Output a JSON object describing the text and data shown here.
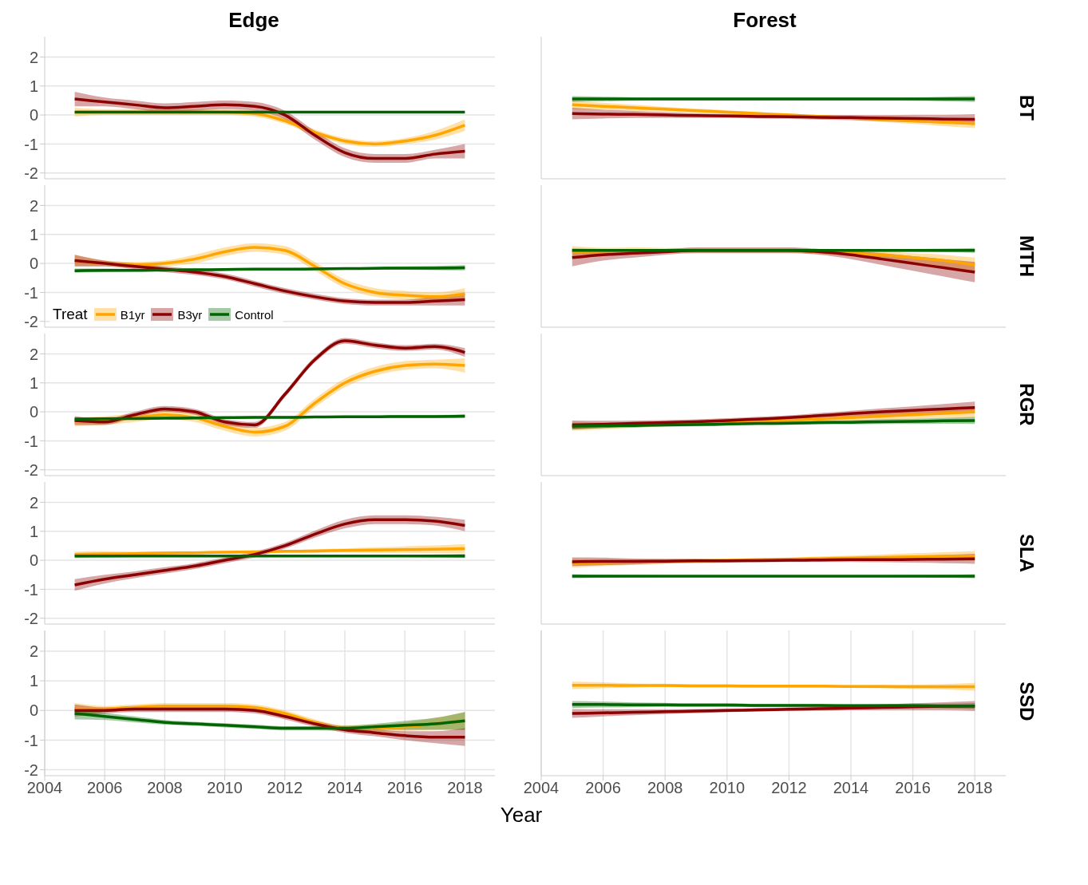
{
  "chart_data": [
    {
      "type": "line",
      "title": "Edge",
      "x": [
        2005,
        2006,
        2007,
        2008,
        2009,
        2010,
        2011,
        2012,
        2013,
        2014,
        2015,
        2016,
        2017,
        2018
      ],
      "xlim": [
        2004,
        2019
      ],
      "xticks": [
        2004,
        2006,
        2008,
        2010,
        2012,
        2014,
        2016,
        2018
      ],
      "ylim": [
        -2.2,
        2.7
      ],
      "yticks": [
        -2,
        -1,
        0,
        1,
        2
      ],
      "grid": true,
      "tick_labels": "y",
      "marker": "none",
      "series": [
        {
          "color": "#ffa500",
          "values": [
            0.1,
            0.1,
            0.1,
            0.1,
            0.1,
            0.1,
            0.05,
            -0.2,
            -0.6,
            -0.9,
            -1.0,
            -0.9,
            -0.7,
            -0.35
          ],
          "lower": [
            -0.05,
            0.0,
            0.0,
            0.0,
            0.0,
            0.0,
            -0.05,
            -0.3,
            -0.7,
            -1.0,
            -1.1,
            -1.0,
            -0.85,
            -0.55
          ],
          "upper": [
            0.25,
            0.2,
            0.2,
            0.2,
            0.2,
            0.2,
            0.15,
            -0.1,
            -0.5,
            -0.8,
            -0.9,
            -0.8,
            -0.55,
            -0.15
          ]
        },
        {
          "color": "#8b0000",
          "values": [
            0.55,
            0.45,
            0.35,
            0.25,
            0.3,
            0.35,
            0.3,
            0.0,
            -0.7,
            -1.3,
            -1.5,
            -1.5,
            -1.35,
            -1.25
          ],
          "lower": [
            0.3,
            0.3,
            0.2,
            0.1,
            0.15,
            0.2,
            0.15,
            -0.15,
            -0.85,
            -1.45,
            -1.65,
            -1.65,
            -1.5,
            -1.5
          ],
          "upper": [
            0.8,
            0.6,
            0.5,
            0.4,
            0.45,
            0.5,
            0.45,
            0.15,
            -0.55,
            -1.15,
            -1.35,
            -1.35,
            -1.2,
            -1.0
          ]
        },
        {
          "color": "#006400",
          "values": [
            0.1,
            0.1,
            0.1,
            0.1,
            0.1,
            0.1,
            0.1,
            0.1,
            0.1,
            0.1,
            0.1,
            0.1,
            0.1,
            0.1
          ]
        }
      ]
    },
    {
      "type": "line",
      "title": "Forest",
      "y2label": "BT",
      "x": [
        2005,
        2006,
        2007,
        2008,
        2009,
        2010,
        2011,
        2012,
        2013,
        2014,
        2015,
        2016,
        2017,
        2018
      ],
      "xlim": [
        2004,
        2019
      ],
      "xticks": [
        2004,
        2006,
        2008,
        2010,
        2012,
        2014,
        2016,
        2018
      ],
      "ylim": [
        -2.2,
        2.7
      ],
      "yticks": [
        -2,
        -1,
        0,
        1,
        2
      ],
      "grid": true,
      "tick_labels": false,
      "marker": "none",
      "series": [
        {
          "color": "#ffa500",
          "values": [
            0.35,
            0.3,
            0.25,
            0.2,
            0.15,
            0.1,
            0.05,
            0.0,
            -0.05,
            -0.1,
            -0.15,
            -0.2,
            -0.25,
            -0.3
          ],
          "lower": [
            0.2,
            0.18,
            0.15,
            0.12,
            0.08,
            0.04,
            0.0,
            -0.05,
            -0.1,
            -0.17,
            -0.24,
            -0.31,
            -0.38,
            -0.45
          ],
          "upper": [
            0.5,
            0.42,
            0.35,
            0.28,
            0.22,
            0.16,
            0.1,
            0.05,
            0.0,
            -0.03,
            -0.06,
            -0.09,
            -0.12,
            -0.15
          ]
        },
        {
          "color": "#8b0000",
          "values": [
            0.05,
            0.03,
            0.02,
            0.0,
            -0.02,
            -0.03,
            -0.05,
            -0.06,
            -0.08,
            -0.09,
            -0.11,
            -0.12,
            -0.14,
            -0.15
          ],
          "lower": [
            -0.15,
            -0.12,
            -0.1,
            -0.1,
            -0.1,
            -0.1,
            -0.12,
            -0.13,
            -0.16,
            -0.18,
            -0.22,
            -0.25,
            -0.29,
            -0.33
          ],
          "upper": [
            0.25,
            0.18,
            0.14,
            0.1,
            0.06,
            0.04,
            0.02,
            0.01,
            0.0,
            0.0,
            0.0,
            0.01,
            0.01,
            0.03
          ]
        },
        {
          "color": "#006400",
          "values": [
            0.55,
            0.55,
            0.55,
            0.55,
            0.55,
            0.55,
            0.55,
            0.55,
            0.55,
            0.55,
            0.55,
            0.55,
            0.55,
            0.55
          ],
          "lower": [
            0.45,
            0.47,
            0.49,
            0.5,
            0.5,
            0.5,
            0.5,
            0.5,
            0.5,
            0.5,
            0.5,
            0.49,
            0.47,
            0.45
          ],
          "upper": [
            0.65,
            0.63,
            0.61,
            0.6,
            0.6,
            0.6,
            0.6,
            0.6,
            0.6,
            0.6,
            0.6,
            0.61,
            0.63,
            0.65
          ]
        }
      ]
    },
    {
      "type": "line",
      "x": [
        2005,
        2006,
        2007,
        2008,
        2009,
        2010,
        2011,
        2012,
        2013,
        2014,
        2015,
        2016,
        2017,
        2018
      ],
      "xlim": [
        2004,
        2019
      ],
      "xticks": [
        2004,
        2006,
        2008,
        2010,
        2012,
        2014,
        2016,
        2018
      ],
      "ylim": [
        -2.2,
        2.7
      ],
      "yticks": [
        -2,
        -1,
        0,
        1,
        2
      ],
      "grid": true,
      "tick_labels": "y",
      "marker": "none",
      "legend": "bottom left",
      "legend_title": "Treat",
      "series": [
        {
          "name": "B1yr",
          "color": "#ffa500",
          "values": [
            0.1,
            0.0,
            -0.05,
            0.0,
            0.15,
            0.4,
            0.55,
            0.45,
            -0.1,
            -0.7,
            -1.0,
            -1.1,
            -1.15,
            -1.05
          ],
          "lower": [
            -0.1,
            -0.1,
            -0.15,
            -0.1,
            0.0,
            0.25,
            0.4,
            0.3,
            -0.25,
            -0.85,
            -1.15,
            -1.25,
            -1.3,
            -1.25
          ],
          "upper": [
            0.3,
            0.1,
            0.05,
            0.1,
            0.3,
            0.55,
            0.7,
            0.6,
            0.05,
            -0.55,
            -0.85,
            -0.95,
            -1.0,
            -0.85
          ]
        },
        {
          "name": "B3yr",
          "color": "#8b0000",
          "values": [
            0.1,
            0.0,
            -0.1,
            -0.2,
            -0.3,
            -0.45,
            -0.7,
            -0.95,
            -1.15,
            -1.3,
            -1.35,
            -1.35,
            -1.3,
            -1.25
          ],
          "lower": [
            -0.1,
            -0.1,
            -0.2,
            -0.3,
            -0.4,
            -0.55,
            -0.8,
            -1.05,
            -1.25,
            -1.4,
            -1.45,
            -1.45,
            -1.45,
            -1.45
          ],
          "upper": [
            0.3,
            0.1,
            0.0,
            -0.1,
            -0.2,
            -0.35,
            -0.6,
            -0.85,
            -1.05,
            -1.2,
            -1.25,
            -1.25,
            -1.15,
            -1.05
          ]
        },
        {
          "name": "Control",
          "color": "#006400",
          "values": [
            -0.25,
            -0.24,
            -0.24,
            -0.23,
            -0.22,
            -0.21,
            -0.2,
            -0.2,
            -0.19,
            -0.18,
            -0.17,
            -0.16,
            -0.16,
            -0.15
          ],
          "lower": [
            -0.32,
            -0.3,
            -0.29,
            -0.27,
            -0.26,
            -0.25,
            -0.24,
            -0.24,
            -0.23,
            -0.22,
            -0.22,
            -0.22,
            -0.23,
            -0.24
          ],
          "upper": [
            -0.18,
            -0.18,
            -0.19,
            -0.19,
            -0.18,
            -0.17,
            -0.16,
            -0.16,
            -0.15,
            -0.14,
            -0.12,
            -0.1,
            -0.09,
            -0.06
          ]
        }
      ]
    },
    {
      "type": "line",
      "y2label": "MTH",
      "x": [
        2005,
        2006,
        2007,
        2008,
        2009,
        2010,
        2011,
        2012,
        2013,
        2014,
        2015,
        2016,
        2017,
        2018
      ],
      "xlim": [
        2004,
        2019
      ],
      "xticks": [
        2004,
        2006,
        2008,
        2010,
        2012,
        2014,
        2016,
        2018
      ],
      "ylim": [
        -2.2,
        2.7
      ],
      "yticks": [
        -2,
        -1,
        0,
        1,
        2
      ],
      "grid": true,
      "tick_labels": false,
      "marker": "none",
      "series": [
        {
          "color": "#ffa500",
          "values": [
            0.4,
            0.42,
            0.45,
            0.45,
            0.45,
            0.45,
            0.45,
            0.45,
            0.4,
            0.35,
            0.3,
            0.2,
            0.1,
            -0.05
          ],
          "lower": [
            0.2,
            0.3,
            0.35,
            0.37,
            0.37,
            0.37,
            0.37,
            0.37,
            0.32,
            0.25,
            0.18,
            0.05,
            -0.1,
            -0.3
          ],
          "upper": [
            0.6,
            0.54,
            0.55,
            0.53,
            0.53,
            0.53,
            0.53,
            0.53,
            0.48,
            0.45,
            0.42,
            0.35,
            0.3,
            0.2
          ]
        },
        {
          "color": "#8b0000",
          "values": [
            0.2,
            0.3,
            0.35,
            0.4,
            0.45,
            0.45,
            0.45,
            0.45,
            0.4,
            0.3,
            0.15,
            0.0,
            -0.15,
            -0.3
          ],
          "lower": [
            -0.1,
            0.1,
            0.2,
            0.3,
            0.35,
            0.35,
            0.35,
            0.35,
            0.3,
            0.15,
            -0.05,
            -0.25,
            -0.45,
            -0.65
          ],
          "upper": [
            0.5,
            0.5,
            0.5,
            0.5,
            0.55,
            0.55,
            0.55,
            0.55,
            0.5,
            0.45,
            0.35,
            0.25,
            0.15,
            0.05
          ]
        },
        {
          "color": "#006400",
          "values": [
            0.45,
            0.45,
            0.45,
            0.45,
            0.45,
            0.45,
            0.45,
            0.45,
            0.45,
            0.45,
            0.45,
            0.45,
            0.45,
            0.45
          ],
          "lower": [
            0.38,
            0.4,
            0.41,
            0.42,
            0.42,
            0.42,
            0.42,
            0.42,
            0.42,
            0.42,
            0.41,
            0.4,
            0.39,
            0.37
          ],
          "upper": [
            0.52,
            0.5,
            0.49,
            0.48,
            0.48,
            0.48,
            0.48,
            0.48,
            0.48,
            0.48,
            0.49,
            0.5,
            0.51,
            0.53
          ]
        }
      ]
    },
    {
      "type": "line",
      "x": [
        2005,
        2006,
        2007,
        2008,
        2009,
        2010,
        2011,
        2012,
        2013,
        2014,
        2015,
        2016,
        2017,
        2018
      ],
      "xlim": [
        2004,
        2019
      ],
      "xticks": [
        2004,
        2006,
        2008,
        2010,
        2012,
        2014,
        2016,
        2018
      ],
      "ylim": [
        -2.2,
        2.7
      ],
      "yticks": [
        -2,
        -1,
        0,
        1,
        2
      ],
      "grid": true,
      "tick_labels": "y",
      "marker": "none",
      "series": [
        {
          "color": "#ffa500",
          "values": [
            -0.35,
            -0.3,
            -0.2,
            -0.1,
            -0.2,
            -0.5,
            -0.7,
            -0.5,
            0.3,
            1.0,
            1.4,
            1.6,
            1.65,
            1.6
          ],
          "lower": [
            -0.5,
            -0.45,
            -0.35,
            -0.25,
            -0.35,
            -0.65,
            -0.85,
            -0.65,
            0.15,
            0.85,
            1.25,
            1.45,
            1.5,
            1.35
          ],
          "upper": [
            -0.2,
            -0.15,
            -0.05,
            0.05,
            -0.05,
            -0.35,
            -0.55,
            -0.35,
            0.45,
            1.15,
            1.55,
            1.75,
            1.8,
            1.85
          ]
        },
        {
          "color": "#8b0000",
          "values": [
            -0.3,
            -0.35,
            -0.1,
            0.1,
            0.0,
            -0.35,
            -0.45,
            0.6,
            1.8,
            2.45,
            2.3,
            2.2,
            2.25,
            2.05
          ],
          "lower": [
            -0.45,
            -0.45,
            -0.2,
            0.0,
            -0.1,
            -0.45,
            -0.55,
            0.5,
            1.7,
            2.35,
            2.2,
            2.1,
            2.15,
            1.9
          ],
          "upper": [
            -0.15,
            -0.25,
            0.0,
            0.2,
            0.1,
            -0.25,
            -0.35,
            0.7,
            1.9,
            2.55,
            2.4,
            2.3,
            2.35,
            2.2
          ]
        },
        {
          "color": "#006400",
          "values": [
            -0.25,
            -0.24,
            -0.23,
            -0.22,
            -0.21,
            -0.2,
            -0.19,
            -0.19,
            -0.18,
            -0.17,
            -0.17,
            -0.16,
            -0.16,
            -0.15
          ],
          "lower": [
            -0.3,
            -0.28,
            -0.27,
            -0.26,
            -0.25,
            -0.24,
            -0.23,
            -0.23,
            -0.22,
            -0.21,
            -0.21,
            -0.21,
            -0.21,
            -0.21
          ],
          "upper": [
            -0.2,
            -0.2,
            -0.19,
            -0.18,
            -0.17,
            -0.16,
            -0.15,
            -0.15,
            -0.14,
            -0.13,
            -0.13,
            -0.11,
            -0.11,
            -0.09
          ]
        }
      ]
    },
    {
      "type": "line",
      "y2label": "RGR",
      "x": [
        2005,
        2006,
        2007,
        2008,
        2009,
        2010,
        2011,
        2012,
        2013,
        2014,
        2015,
        2016,
        2017,
        2018
      ],
      "xlim": [
        2004,
        2019
      ],
      "xticks": [
        2004,
        2006,
        2008,
        2010,
        2012,
        2014,
        2016,
        2018
      ],
      "ylim": [
        -2.2,
        2.7
      ],
      "yticks": [
        -2,
        -1,
        0,
        1,
        2
      ],
      "grid": true,
      "tick_labels": false,
      "marker": "none",
      "series": [
        {
          "color": "#ffa500",
          "values": [
            -0.5,
            -0.48,
            -0.45,
            -0.42,
            -0.4,
            -0.37,
            -0.33,
            -0.3,
            -0.25,
            -0.2,
            -0.15,
            -0.1,
            -0.05,
            0.0
          ],
          "lower": [
            -0.65,
            -0.6,
            -0.55,
            -0.5,
            -0.47,
            -0.44,
            -0.4,
            -0.38,
            -0.34,
            -0.3,
            -0.27,
            -0.24,
            -0.21,
            -0.2
          ],
          "upper": [
            -0.35,
            -0.36,
            -0.35,
            -0.34,
            -0.33,
            -0.3,
            -0.26,
            -0.22,
            -0.16,
            -0.1,
            -0.03,
            0.04,
            0.11,
            0.2
          ]
        },
        {
          "color": "#8b0000",
          "values": [
            -0.45,
            -0.43,
            -0.4,
            -0.37,
            -0.34,
            -0.3,
            -0.25,
            -0.2,
            -0.13,
            -0.06,
            0.0,
            0.05,
            0.1,
            0.15
          ],
          "lower": [
            -0.6,
            -0.55,
            -0.5,
            -0.45,
            -0.42,
            -0.38,
            -0.33,
            -0.28,
            -0.22,
            -0.16,
            -0.12,
            -0.09,
            -0.07,
            -0.05
          ],
          "upper": [
            -0.3,
            -0.31,
            -0.3,
            -0.29,
            -0.26,
            -0.22,
            -0.17,
            -0.12,
            -0.04,
            0.04,
            0.12,
            0.19,
            0.27,
            0.35
          ]
        },
        {
          "color": "#006400",
          "values": [
            -0.5,
            -0.48,
            -0.47,
            -0.45,
            -0.44,
            -0.42,
            -0.4,
            -0.39,
            -0.37,
            -0.36,
            -0.34,
            -0.33,
            -0.31,
            -0.3
          ],
          "lower": [
            -0.6,
            -0.56,
            -0.54,
            -0.51,
            -0.5,
            -0.48,
            -0.46,
            -0.45,
            -0.43,
            -0.43,
            -0.42,
            -0.42,
            -0.41,
            -0.42
          ],
          "upper": [
            -0.4,
            -0.4,
            -0.4,
            -0.39,
            -0.38,
            -0.36,
            -0.34,
            -0.33,
            -0.31,
            -0.29,
            -0.26,
            -0.24,
            -0.21,
            -0.18
          ]
        }
      ]
    },
    {
      "type": "line",
      "x": [
        2005,
        2006,
        2007,
        2008,
        2009,
        2010,
        2011,
        2012,
        2013,
        2014,
        2015,
        2016,
        2017,
        2018
      ],
      "xlim": [
        2004,
        2019
      ],
      "xticks": [
        2004,
        2006,
        2008,
        2010,
        2012,
        2014,
        2016,
        2018
      ],
      "ylim": [
        -2.2,
        2.7
      ],
      "yticks": [
        -2,
        -1,
        0,
        1,
        2
      ],
      "grid": true,
      "tick_labels": "y",
      "marker": "none",
      "series": [
        {
          "color": "#ffa500",
          "values": [
            0.2,
            0.22,
            0.23,
            0.25,
            0.26,
            0.28,
            0.29,
            0.31,
            0.32,
            0.34,
            0.35,
            0.37,
            0.38,
            0.4
          ],
          "lower": [
            0.1,
            0.13,
            0.16,
            0.19,
            0.21,
            0.23,
            0.24,
            0.26,
            0.26,
            0.27,
            0.26,
            0.26,
            0.25,
            0.24
          ],
          "upper": [
            0.3,
            0.31,
            0.3,
            0.31,
            0.31,
            0.33,
            0.34,
            0.36,
            0.38,
            0.41,
            0.44,
            0.48,
            0.51,
            0.56
          ]
        },
        {
          "color": "#8b0000",
          "values": [
            -0.85,
            -0.65,
            -0.5,
            -0.35,
            -0.2,
            0.0,
            0.2,
            0.5,
            0.9,
            1.25,
            1.4,
            1.4,
            1.35,
            1.2
          ],
          "lower": [
            -1.05,
            -0.8,
            -0.62,
            -0.46,
            -0.3,
            -0.1,
            0.1,
            0.4,
            0.78,
            1.1,
            1.25,
            1.25,
            1.2,
            1.0
          ],
          "upper": [
            -0.65,
            -0.5,
            -0.38,
            -0.24,
            -0.1,
            0.1,
            0.3,
            0.6,
            1.02,
            1.4,
            1.55,
            1.55,
            1.5,
            1.4
          ]
        },
        {
          "color": "#006400",
          "values": [
            0.15,
            0.15,
            0.15,
            0.15,
            0.15,
            0.15,
            0.15,
            0.15,
            0.15,
            0.15,
            0.15,
            0.15,
            0.15,
            0.15
          ],
          "lower": [
            0.08,
            0.1,
            0.11,
            0.12,
            0.12,
            0.12,
            0.12,
            0.12,
            0.12,
            0.12,
            0.12,
            0.11,
            0.1,
            0.08
          ],
          "upper": [
            0.22,
            0.2,
            0.19,
            0.18,
            0.18,
            0.18,
            0.18,
            0.18,
            0.18,
            0.18,
            0.18,
            0.19,
            0.2,
            0.22
          ]
        }
      ]
    },
    {
      "type": "line",
      "y2label": "SLA",
      "x": [
        2005,
        2006,
        2007,
        2008,
        2009,
        2010,
        2011,
        2012,
        2013,
        2014,
        2015,
        2016,
        2017,
        2018
      ],
      "xlim": [
        2004,
        2019
      ],
      "xticks": [
        2004,
        2006,
        2008,
        2010,
        2012,
        2014,
        2016,
        2018
      ],
      "ylim": [
        -2.2,
        2.7
      ],
      "yticks": [
        -2,
        -1,
        0,
        1,
        2
      ],
      "grid": true,
      "tick_labels": false,
      "marker": "none",
      "series": [
        {
          "color": "#ffa500",
          "values": [
            -0.1,
            -0.08,
            -0.06,
            -0.04,
            -0.02,
            0.0,
            0.02,
            0.04,
            0.06,
            0.08,
            0.1,
            0.12,
            0.14,
            0.15
          ],
          "lower": [
            -0.25,
            -0.2,
            -0.16,
            -0.12,
            -0.09,
            -0.06,
            -0.04,
            -0.02,
            -0.01,
            0.0,
            0.0,
            0.0,
            0.0,
            -0.02
          ],
          "upper": [
            0.05,
            0.04,
            0.04,
            0.04,
            0.05,
            0.06,
            0.08,
            0.1,
            0.13,
            0.16,
            0.2,
            0.24,
            0.28,
            0.32
          ]
        },
        {
          "color": "#8b0000",
          "values": [
            -0.05,
            -0.04,
            -0.04,
            -0.03,
            -0.02,
            -0.02,
            -0.01,
            0.0,
            0.01,
            0.02,
            0.02,
            0.03,
            0.04,
            0.05
          ],
          "lower": [
            -0.2,
            -0.17,
            -0.14,
            -0.11,
            -0.09,
            -0.08,
            -0.07,
            -0.06,
            -0.06,
            -0.06,
            -0.07,
            -0.08,
            -0.1,
            -0.12
          ],
          "upper": [
            0.1,
            0.09,
            0.06,
            0.05,
            0.05,
            0.04,
            0.05,
            0.06,
            0.08,
            0.1,
            0.11,
            0.14,
            0.18,
            0.22
          ]
        },
        {
          "color": "#006400",
          "values": [
            -0.55,
            -0.55,
            -0.55,
            -0.55,
            -0.55,
            -0.55,
            -0.55,
            -0.55,
            -0.55,
            -0.55,
            -0.55,
            -0.55,
            -0.55,
            -0.55
          ],
          "lower": [
            -0.62,
            -0.6,
            -0.59,
            -0.58,
            -0.58,
            -0.58,
            -0.58,
            -0.58,
            -0.58,
            -0.58,
            -0.58,
            -0.59,
            -0.6,
            -0.62
          ],
          "upper": [
            -0.48,
            -0.5,
            -0.51,
            -0.52,
            -0.52,
            -0.52,
            -0.52,
            -0.52,
            -0.52,
            -0.52,
            -0.52,
            -0.51,
            -0.5,
            -0.48
          ]
        }
      ]
    },
    {
      "type": "line",
      "xlabel": "Year",
      "x": [
        2005,
        2006,
        2007,
        2008,
        2009,
        2010,
        2011,
        2012,
        2013,
        2014,
        2015,
        2016,
        2017,
        2018
      ],
      "xlim": [
        2004,
        2019
      ],
      "xticks": [
        2004,
        2006,
        2008,
        2010,
        2012,
        2014,
        2016,
        2018
      ],
      "ylim": [
        -2.2,
        2.7
      ],
      "yticks": [
        -2,
        -1,
        0,
        1,
        2
      ],
      "grid": true,
      "marker": "none",
      "series": [
        {
          "color": "#ffa500",
          "values": [
            0.05,
            0.05,
            0.1,
            0.15,
            0.15,
            0.15,
            0.1,
            -0.1,
            -0.4,
            -0.6,
            -0.6,
            -0.55,
            -0.45,
            -0.35
          ],
          "lower": [
            -0.15,
            -0.05,
            0.0,
            0.05,
            0.05,
            0.05,
            0.0,
            -0.2,
            -0.5,
            -0.7,
            -0.72,
            -0.7,
            -0.65,
            -0.65
          ],
          "upper": [
            0.25,
            0.15,
            0.2,
            0.25,
            0.25,
            0.25,
            0.2,
            0.0,
            -0.3,
            -0.5,
            -0.48,
            -0.4,
            -0.25,
            -0.05
          ]
        },
        {
          "color": "#8b0000",
          "values": [
            0.0,
            0.0,
            0.05,
            0.05,
            0.05,
            0.05,
            0.0,
            -0.2,
            -0.45,
            -0.65,
            -0.75,
            -0.85,
            -0.9,
            -0.9
          ],
          "lower": [
            -0.2,
            -0.1,
            -0.05,
            -0.05,
            -0.05,
            -0.05,
            -0.1,
            -0.3,
            -0.55,
            -0.75,
            -0.87,
            -1.0,
            -1.1,
            -1.2
          ],
          "upper": [
            0.2,
            0.1,
            0.15,
            0.15,
            0.15,
            0.15,
            0.1,
            -0.1,
            -0.35,
            -0.55,
            -0.63,
            -0.7,
            -0.7,
            -0.6
          ]
        },
        {
          "color": "#006400",
          "values": [
            -0.1,
            -0.2,
            -0.3,
            -0.4,
            -0.45,
            -0.5,
            -0.55,
            -0.6,
            -0.6,
            -0.6,
            -0.55,
            -0.5,
            -0.45,
            -0.35
          ],
          "lower": [
            -0.3,
            -0.32,
            -0.4,
            -0.48,
            -0.52,
            -0.57,
            -0.62,
            -0.67,
            -0.67,
            -0.68,
            -0.65,
            -0.65,
            -0.65,
            -0.65
          ],
          "upper": [
            0.1,
            -0.08,
            -0.2,
            -0.32,
            -0.38,
            -0.43,
            -0.48,
            -0.53,
            -0.53,
            -0.52,
            -0.45,
            -0.35,
            -0.25,
            -0.05
          ]
        }
      ]
    },
    {
      "type": "line",
      "y2label": "SSD",
      "x": [
        2005,
        2006,
        2007,
        2008,
        2009,
        2010,
        2011,
        2012,
        2013,
        2014,
        2015,
        2016,
        2017,
        2018
      ],
      "xlim": [
        2004,
        2019
      ],
      "xticks": [
        2004,
        2006,
        2008,
        2010,
        2012,
        2014,
        2016,
        2018
      ],
      "ylim": [
        -2.2,
        2.7
      ],
      "yticks": [
        -2,
        -1,
        0,
        1,
        2
      ],
      "grid": true,
      "tick_labels": "x",
      "marker": "none",
      "series": [
        {
          "color": "#ffa500",
          "values": [
            0.85,
            0.85,
            0.84,
            0.84,
            0.83,
            0.83,
            0.82,
            0.82,
            0.82,
            0.81,
            0.81,
            0.8,
            0.8,
            0.8
          ],
          "lower": [
            0.72,
            0.75,
            0.77,
            0.78,
            0.78,
            0.78,
            0.77,
            0.77,
            0.77,
            0.76,
            0.75,
            0.73,
            0.71,
            0.67
          ],
          "upper": [
            0.98,
            0.95,
            0.91,
            0.9,
            0.88,
            0.88,
            0.87,
            0.87,
            0.87,
            0.86,
            0.87,
            0.87,
            0.89,
            0.93
          ]
        },
        {
          "color": "#8b0000",
          "values": [
            -0.1,
            -0.08,
            -0.06,
            -0.04,
            -0.02,
            0.0,
            0.02,
            0.04,
            0.06,
            0.08,
            0.1,
            0.12,
            0.14,
            0.15
          ],
          "lower": [
            -0.25,
            -0.2,
            -0.16,
            -0.12,
            -0.09,
            -0.06,
            -0.04,
            -0.02,
            -0.01,
            0.0,
            0.0,
            0.0,
            0.0,
            -0.02
          ],
          "upper": [
            0.05,
            0.04,
            0.04,
            0.04,
            0.05,
            0.06,
            0.08,
            0.1,
            0.13,
            0.16,
            0.2,
            0.24,
            0.28,
            0.32
          ]
        },
        {
          "color": "#006400",
          "values": [
            0.2,
            0.2,
            0.19,
            0.19,
            0.18,
            0.18,
            0.17,
            0.17,
            0.17,
            0.16,
            0.16,
            0.16,
            0.15,
            0.15
          ],
          "lower": [
            0.08,
            0.1,
            0.11,
            0.12,
            0.12,
            0.12,
            0.12,
            0.12,
            0.12,
            0.11,
            0.1,
            0.09,
            0.07,
            0.05
          ],
          "upper": [
            0.32,
            0.3,
            0.27,
            0.26,
            0.24,
            0.24,
            0.22,
            0.22,
            0.22,
            0.21,
            0.22,
            0.23,
            0.23,
            0.25
          ]
        }
      ]
    }
  ]
}
